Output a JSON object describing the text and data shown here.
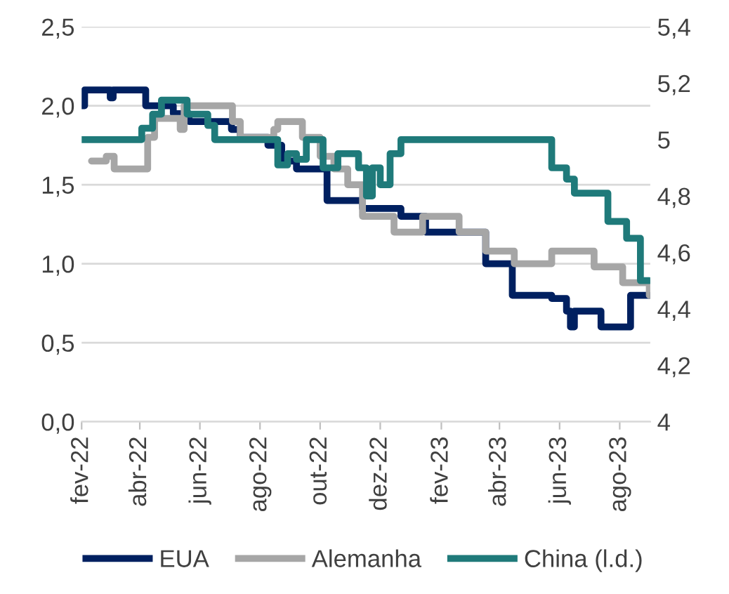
{
  "chart_data": {
    "type": "step",
    "xlim": [
      "2022-02-01",
      "2023-09-01"
    ],
    "xticks": [
      {
        "value": "2022-02-01",
        "label": "fev-22"
      },
      {
        "value": "2022-04-01",
        "label": "abr-22"
      },
      {
        "value": "2022-06-01",
        "label": "jun-22"
      },
      {
        "value": "2022-08-01",
        "label": "ago-22"
      },
      {
        "value": "2022-10-01",
        "label": "out-22"
      },
      {
        "value": "2022-12-01",
        "label": "dez-22"
      },
      {
        "value": "2023-02-01",
        "label": "fev-23"
      },
      {
        "value": "2023-04-01",
        "label": "abr-23"
      },
      {
        "value": "2023-06-01",
        "label": "jun-23"
      },
      {
        "value": "2023-08-01",
        "label": "ago-23"
      }
    ],
    "ylim": [
      0,
      2.5
    ],
    "yticks": [
      {
        "value": 0,
        "label": "0,0"
      },
      {
        "value": 0.5,
        "label": "0,5"
      },
      {
        "value": 1,
        "label": "1,0"
      },
      {
        "value": 1.5,
        "label": "1,5"
      },
      {
        "value": 2,
        "label": "2,0"
      },
      {
        "value": 2.5,
        "label": "2,5"
      }
    ],
    "y2lim": [
      4,
      5.4
    ],
    "y2ticks": [
      4,
      {
        "value": 4.2,
        "label": "4,2"
      },
      {
        "value": 4.4,
        "label": "4,4"
      },
      {
        "value": 4.6,
        "label": "4,6"
      },
      {
        "value": 4.8,
        "label": "4,8"
      },
      5,
      {
        "value": 5.2,
        "label": "5,2"
      },
      {
        "value": 5.4,
        "label": "5,4"
      }
    ],
    "grid": "y",
    "legend": "bottom",
    "line_style": "solid",
    "marker": "none",
    "series": [
      {
        "name": "EUA",
        "color": "#002060",
        "x": [
          "2022-02-01",
          "2022-02-04",
          "2022-03-02",
          "2022-03-05",
          "2022-04-07",
          "2022-05-05",
          "2022-05-21",
          "2022-07-03",
          "2022-07-12",
          "2022-08-09",
          "2022-08-23",
          "2022-09-07",
          "2022-10-08",
          "2022-11-13",
          "2022-12-22",
          "2023-01-16",
          "2023-03-18",
          "2023-04-14",
          "2023-05-24",
          "2023-06-08",
          "2023-06-12",
          "2023-06-16",
          "2023-07-13",
          "2023-08-12",
          "2023-08-31"
        ],
        "values": [
          2.0,
          2.1,
          2.05,
          2.1,
          2.0,
          1.95,
          1.9,
          1.85,
          1.8,
          1.75,
          1.65,
          1.6,
          1.4,
          1.35,
          1.3,
          1.2,
          1.0,
          0.8,
          0.78,
          0.7,
          0.6,
          0.7,
          0.6,
          0.8,
          0.8
        ]
      },
      {
        "name": "Alemanha",
        "color": "#a6a6a6",
        "x": [
          "2022-02-11",
          "2022-02-26",
          "2022-03-06",
          "2022-04-09",
          "2022-04-16",
          "2022-05-12",
          "2022-05-16",
          "2022-07-04",
          "2022-07-12",
          "2022-08-15",
          "2022-08-19",
          "2022-09-13",
          "2022-10-01",
          "2022-10-15",
          "2022-10-29",
          "2022-11-13",
          "2022-12-15",
          "2023-01-13",
          "2023-02-19",
          "2023-03-18",
          "2023-04-16",
          "2023-05-24",
          "2023-07-06",
          "2023-08-04",
          "2023-08-31"
        ],
        "values": [
          1.65,
          1.68,
          1.6,
          1.8,
          1.92,
          1.85,
          2.0,
          1.9,
          1.8,
          1.85,
          1.9,
          1.8,
          1.68,
          1.6,
          1.5,
          1.3,
          1.2,
          1.3,
          1.2,
          1.08,
          1.0,
          1.08,
          0.98,
          0.88,
          0.8
        ]
      },
      {
        "name": "China (l.d.)",
        "color": "#1f7a7a",
        "axis": "y2",
        "x": [
          "2022-02-01",
          "2022-04-03",
          "2022-04-14",
          "2022-04-23",
          "2022-05-19",
          "2022-06-09",
          "2022-06-16",
          "2022-08-19",
          "2022-08-29",
          "2022-09-07",
          "2022-09-17",
          "2022-10-04",
          "2022-10-19",
          "2022-11-09",
          "2022-11-17",
          "2022-11-23",
          "2022-12-01",
          "2022-12-11",
          "2022-12-22",
          "2023-05-24",
          "2023-06-08",
          "2023-06-16",
          "2023-07-20",
          "2023-08-08",
          "2023-08-22",
          "2023-08-31"
        ],
        "values": [
          5.0,
          5.04,
          5.09,
          5.14,
          5.09,
          5.05,
          5.0,
          4.91,
          4.95,
          4.93,
          5.0,
          4.9,
          4.95,
          4.9,
          4.8,
          4.9,
          4.84,
          4.95,
          5.0,
          4.9,
          4.86,
          4.81,
          4.71,
          4.65,
          4.5,
          4.5
        ]
      }
    ]
  }
}
